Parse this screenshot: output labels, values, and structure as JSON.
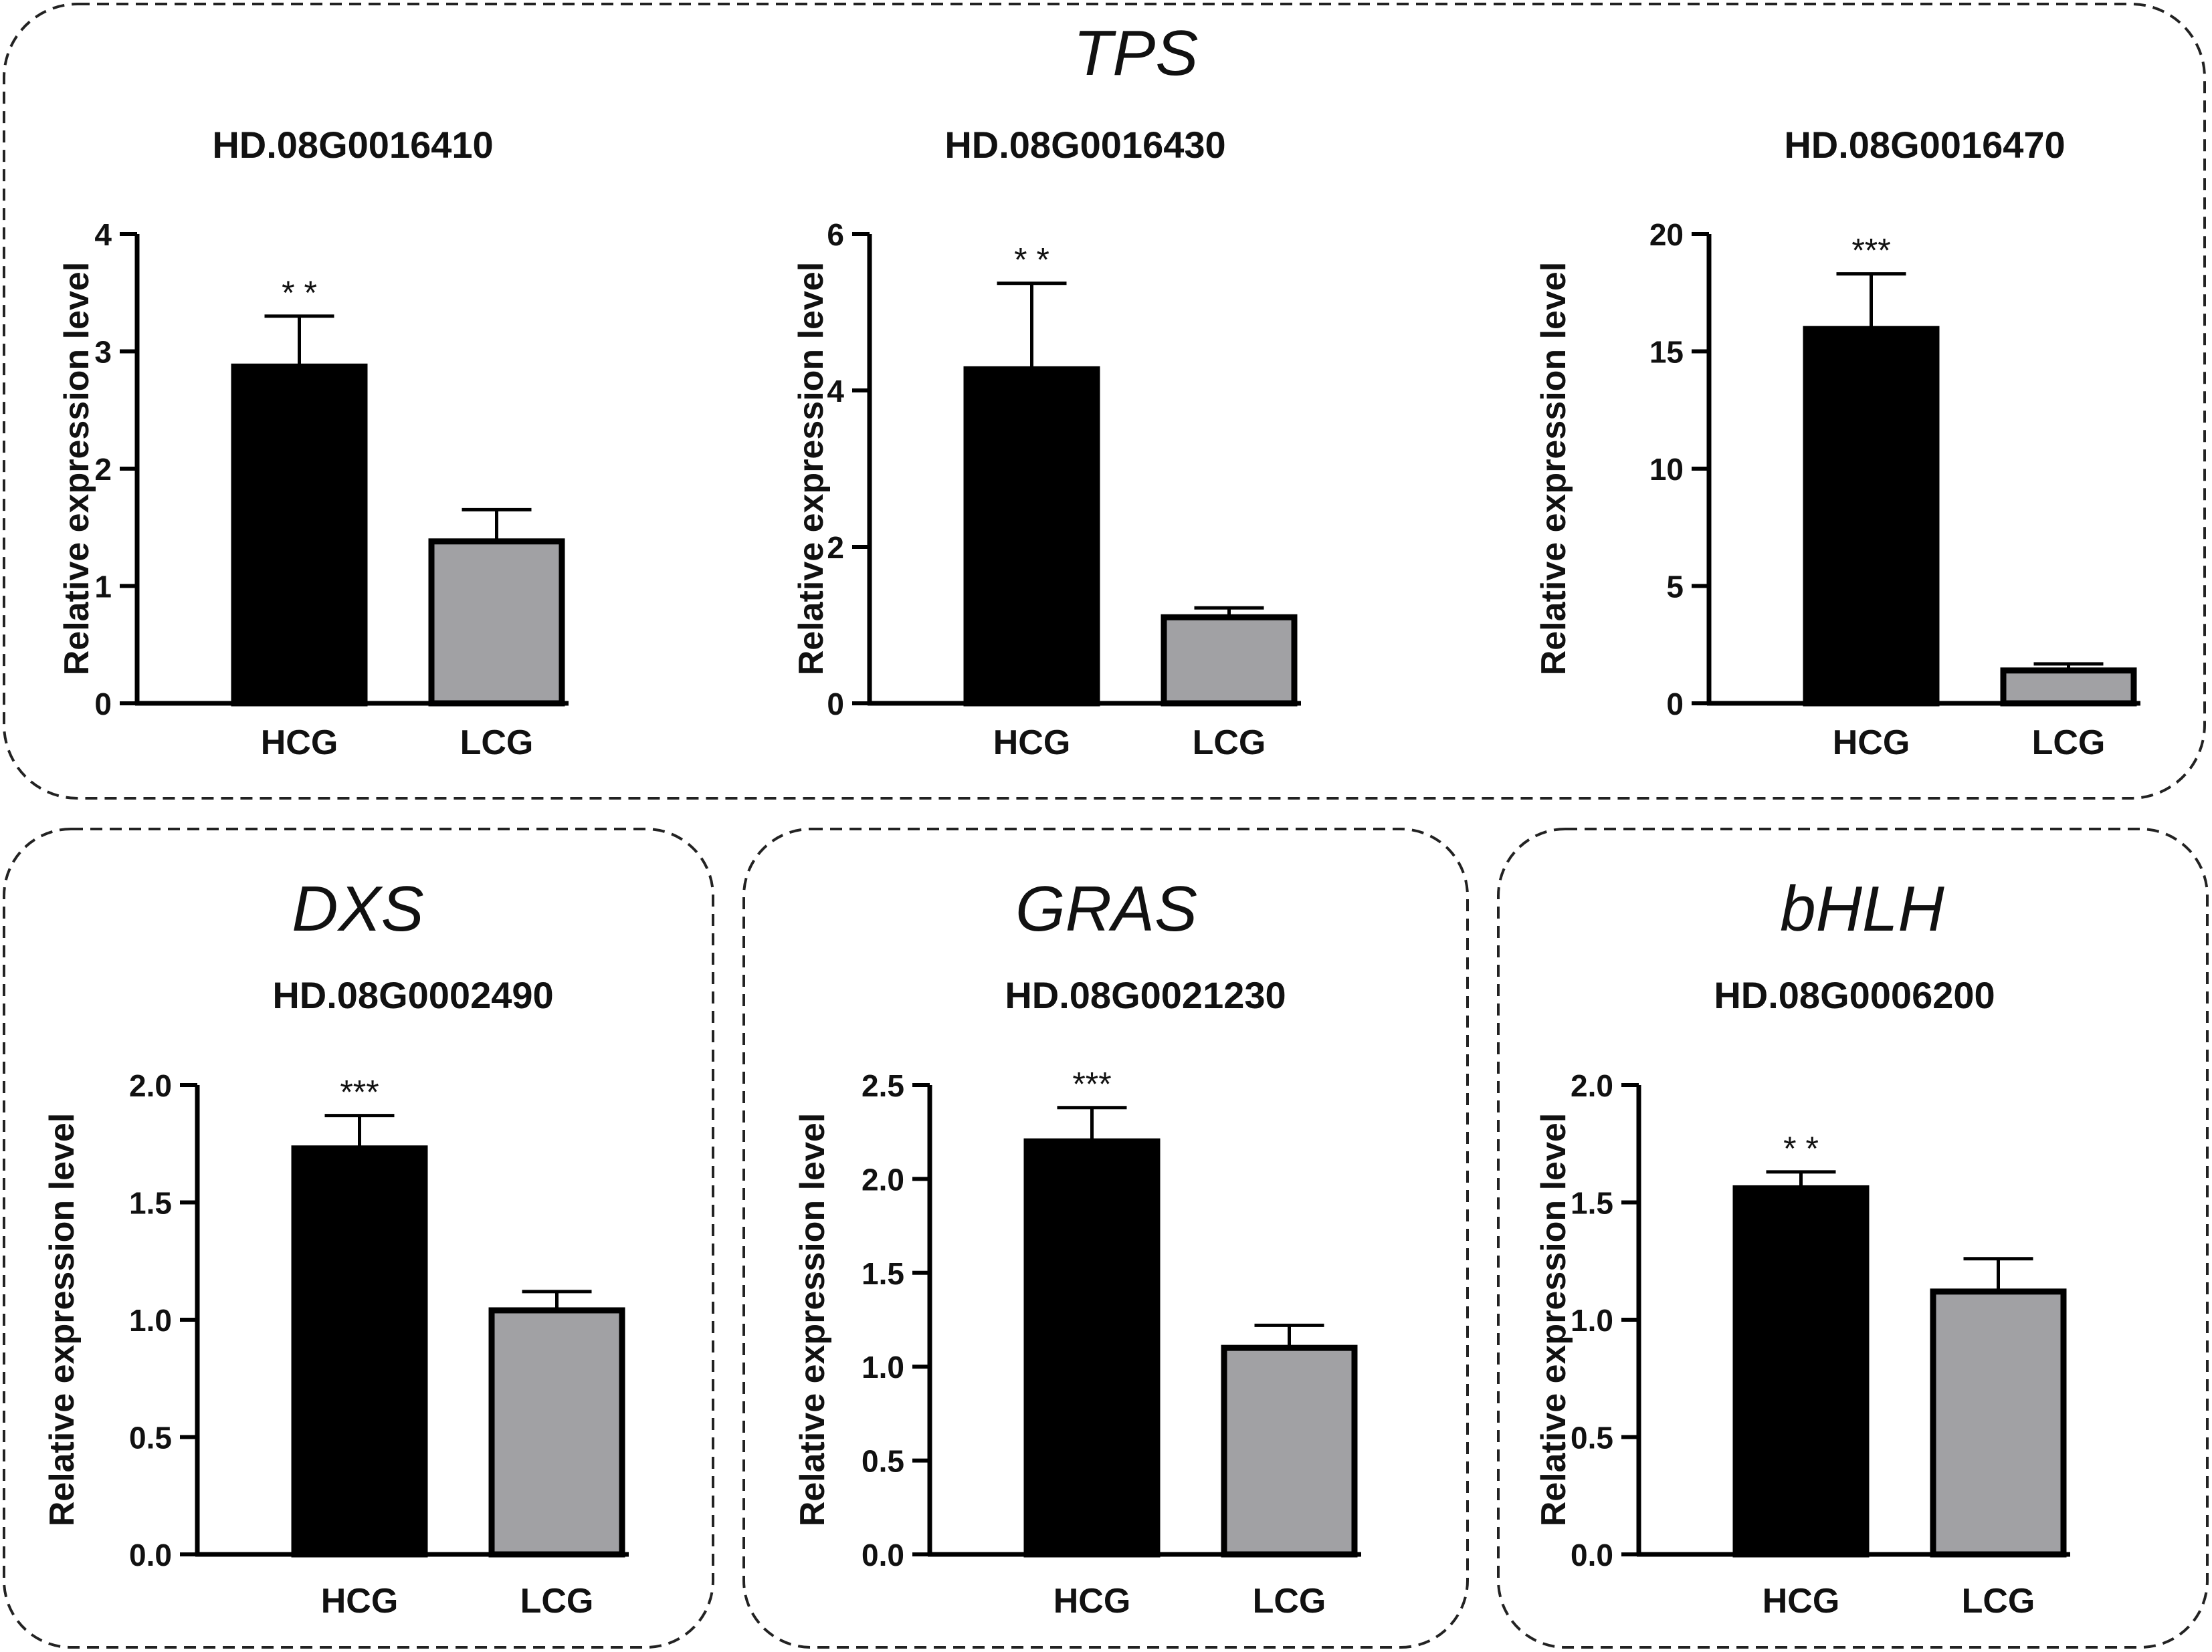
{
  "groups": [
    {
      "id": "tps",
      "label": "TPS"
    },
    {
      "id": "dxs",
      "label": "DXS"
    },
    {
      "id": "gras",
      "label": "GRAS"
    },
    {
      "id": "bhlh",
      "label": "bHLH"
    }
  ],
  "chart_data": [
    {
      "type": "bar",
      "group": "TPS",
      "title": "HD.08G0016410",
      "ylabel": "Relative expression level",
      "categories": [
        "HCG",
        "LCG"
      ],
      "values": [
        2.87,
        1.38
      ],
      "errors": [
        0.43,
        0.27
      ],
      "ylim": [
        0,
        4
      ],
      "yticks": [
        "0",
        "1",
        "2",
        "3",
        "4"
      ],
      "significance": "* *",
      "colors": [
        "#000000",
        "#a1a1a4"
      ]
    },
    {
      "type": "bar",
      "group": "TPS",
      "title": "HD.08G0016430",
      "ylabel": "Relative expression level",
      "categories": [
        "HCG",
        "LCG"
      ],
      "values": [
        4.27,
        1.1
      ],
      "errors": [
        1.1,
        0.12
      ],
      "ylim": [
        0,
        6
      ],
      "yticks": [
        "0",
        "2",
        "4",
        "6"
      ],
      "significance": "* *",
      "colors": [
        "#000000",
        "#a1a1a4"
      ]
    },
    {
      "type": "bar",
      "group": "TPS",
      "title": "HD.08G0016470",
      "ylabel": "Relative expression level",
      "categories": [
        "HCG",
        "LCG"
      ],
      "values": [
        15.95,
        1.4
      ],
      "errors": [
        2.35,
        0.28
      ],
      "ylim": [
        0,
        20
      ],
      "yticks": [
        "0",
        "5",
        "10",
        "15",
        "20"
      ],
      "significance": "***",
      "colors": [
        "#000000",
        "#a1a1a4"
      ]
    },
    {
      "type": "bar",
      "group": "DXS",
      "title": "HD.08G0002490",
      "ylabel": "Relative expression level",
      "categories": [
        "HCG",
        "LCG"
      ],
      "values": [
        1.73,
        1.04
      ],
      "errors": [
        0.14,
        0.08
      ],
      "ylim": [
        0,
        2
      ],
      "yticks": [
        "0.0",
        "0.5",
        "1.0",
        "1.5",
        "2.0"
      ],
      "significance": "***",
      "colors": [
        "#000000",
        "#a1a1a4"
      ]
    },
    {
      "type": "bar",
      "group": "GRAS",
      "title": "HD.08G0021230",
      "ylabel": "Relative expression level",
      "categories": [
        "HCG",
        "LCG"
      ],
      "values": [
        2.2,
        1.1
      ],
      "errors": [
        0.18,
        0.12
      ],
      "ylim": [
        0,
        2.5
      ],
      "yticks": [
        "0.0",
        "0.5",
        "1.0",
        "1.5",
        "2.0",
        "2.5"
      ],
      "significance": "***",
      "colors": [
        "#000000",
        "#a1a1a4"
      ]
    },
    {
      "type": "bar",
      "group": "bHLH",
      "title": "HD.08G0006200",
      "ylabel": "Relative expression level",
      "categories": [
        "HCG",
        "LCG"
      ],
      "values": [
        1.56,
        1.12
      ],
      "errors": [
        0.07,
        0.14
      ],
      "ylim": [
        0,
        2
      ],
      "yticks": [
        "0.0",
        "0.5",
        "1.0",
        "1.5",
        "2.0"
      ],
      "significance": "* *",
      "colors": [
        "#000000",
        "#a1a1a4"
      ]
    }
  ]
}
